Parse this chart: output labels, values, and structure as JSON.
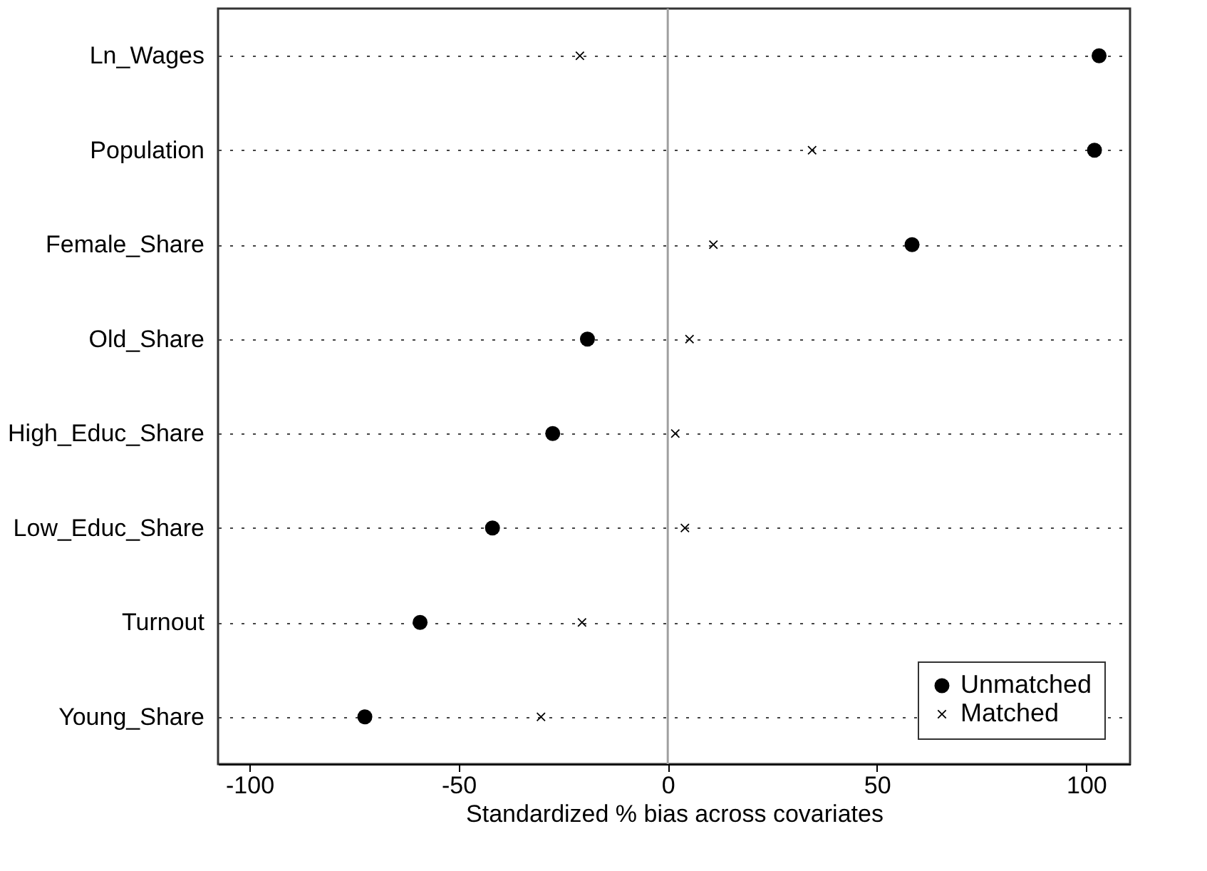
{
  "chart_data": {
    "type": "scatter",
    "orientation": "horizontal",
    "xlabel": "Standardized % bias across covariates",
    "categories": [
      "Ln_Wages",
      "Population",
      "Female_Share",
      "Old_Share",
      "High_Educ_Share",
      "Low_Educ_Share",
      "Turnout",
      "Young_Share"
    ],
    "series": [
      {
        "name": "Unmatched",
        "color": "#000000",
        "marker": "circle",
        "values": [
          103.1,
          102.0,
          58.4,
          -19.2,
          -27.5,
          -41.9,
          -59.2,
          -72.4
        ]
      },
      {
        "name": "Matched",
        "color": "#000000",
        "marker": "cross",
        "values": [
          -21.0,
          34.5,
          10.9,
          5.2,
          1.8,
          4.1,
          -20.5,
          -30.3
        ]
      }
    ],
    "xlim": [
      -107.5,
      110.5
    ],
    "xticks": [
      -100,
      -50,
      0,
      50,
      100
    ],
    "ref_lines": [
      {
        "axis": "x",
        "value": 0,
        "color": "#a0a0a0"
      }
    ],
    "grid": "y",
    "legend": "bottom right"
  }
}
